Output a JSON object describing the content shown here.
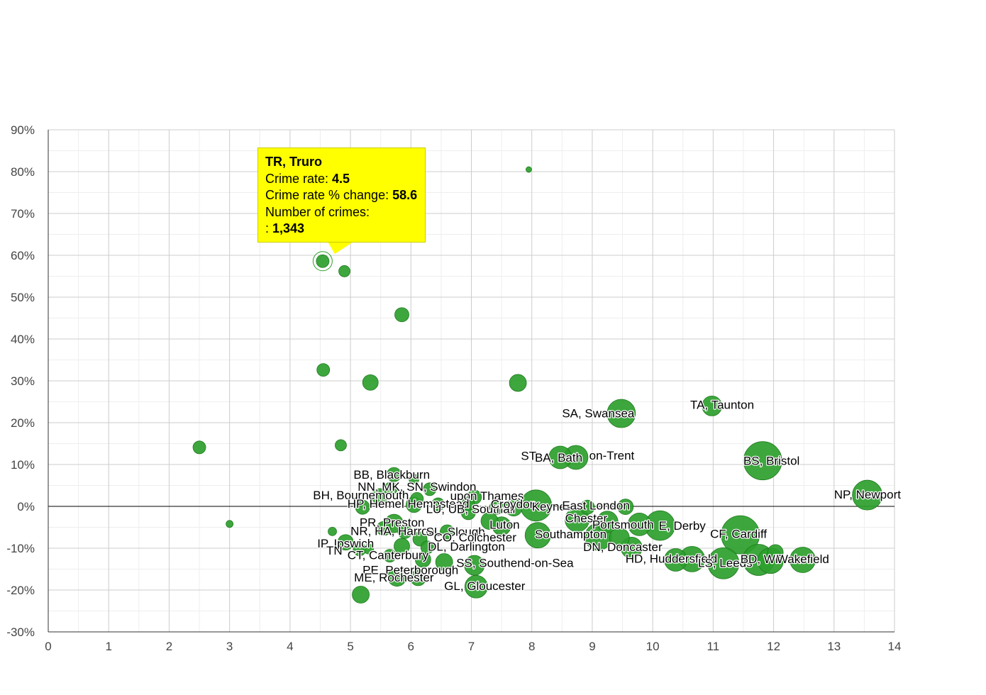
{
  "colors": {
    "bubble": "#2ca02c",
    "bubble_edge": "#1f7a1f",
    "grid_major": "#cccccc",
    "grid_minor": "#eeeeee",
    "zero_line": "#000000",
    "tooltip_bg": "#ffff00"
  },
  "chart_data": {
    "type": "scatter",
    "title": "",
    "xlabel": "Crime rate",
    "ylabel": "Crime rate % change",
    "xlim": [
      0,
      14
    ],
    "ylim": [
      -30,
      90
    ],
    "x_ticks": [
      "0",
      "1",
      "2",
      "3",
      "4",
      "5",
      "6",
      "7",
      "8",
      "9",
      "10",
      "11",
      "12",
      "13",
      "14"
    ],
    "y_ticks": [
      "90%",
      "80%",
      "70%",
      "60%",
      "50%",
      "40%",
      "30%",
      "20%",
      "10%",
      "0%",
      "-10%",
      "-20%",
      "-30%"
    ],
    "grid": true,
    "points": [
      {
        "x": 4.54,
        "y": 58.6,
        "r": 9,
        "label": ""
      },
      {
        "x": 4.9,
        "y": 56.2,
        "r": 8,
        "label": ""
      },
      {
        "x": 7.95,
        "y": 80.5,
        "r": 4,
        "label": ""
      },
      {
        "x": 5.85,
        "y": 45.8,
        "r": 10,
        "label": ""
      },
      {
        "x": 4.55,
        "y": 32.6,
        "r": 9,
        "label": ""
      },
      {
        "x": 5.33,
        "y": 29.6,
        "r": 11,
        "label": ""
      },
      {
        "x": 7.77,
        "y": 29.5,
        "r": 12,
        "label": ""
      },
      {
        "x": 2.5,
        "y": 14.1,
        "r": 9,
        "label": ""
      },
      {
        "x": 4.84,
        "y": 14.6,
        "r": 8,
        "label": ""
      },
      {
        "x": 3.0,
        "y": -4.2,
        "r": 5,
        "label": ""
      },
      {
        "x": 4.7,
        "y": -6.0,
        "r": 6,
        "label": ""
      },
      {
        "x": 9.48,
        "y": 22.2,
        "r": 20,
        "label": "SA, Swansea"
      },
      {
        "x": 10.98,
        "y": 24.0,
        "r": 14,
        "label": "TA, Taunton"
      },
      {
        "x": 8.47,
        "y": 11.7,
        "r": 16,
        "label": "ST"
      },
      {
        "x": 8.73,
        "y": 11.7,
        "r": 17,
        "label": "BA, Bath"
      },
      {
        "x": 11.82,
        "y": 10.9,
        "r": 27,
        "label": "BS, Bristol"
      },
      {
        "x": 13.55,
        "y": 2.7,
        "r": 21,
        "label": "NP, Newport"
      },
      {
        "x": 5.72,
        "y": 7.6,
        "r": 10,
        "label": "BB, Blackburn"
      },
      {
        "x": 6.05,
        "y": 6.5,
        "r": 7,
        "label": ""
      },
      {
        "x": 5.67,
        "y": 4.3,
        "r": 9,
        "label": "NN"
      },
      {
        "x": 6.31,
        "y": 4.1,
        "r": 9,
        "label": "SN, Swindon"
      },
      {
        "x": 5.48,
        "y": 2.4,
        "r": 11,
        "label": "BH, Bournemouth"
      },
      {
        "x": 6.1,
        "y": 1.8,
        "r": 9,
        "label": ""
      },
      {
        "x": 7.05,
        "y": 2.2,
        "r": 10,
        "label": "Thames"
      },
      {
        "x": 5.2,
        "y": -0.2,
        "r": 10,
        "label": "HP, Hemel"
      },
      {
        "x": 6.05,
        "y": 0.4,
        "r": 11,
        "label": ""
      },
      {
        "x": 6.45,
        "y": 0.5,
        "r": 9,
        "label": ""
      },
      {
        "x": 6.95,
        "y": 0.6,
        "r": 9,
        "label": ""
      },
      {
        "x": 7.42,
        "y": -0.2,
        "r": 10,
        "label": ""
      },
      {
        "x": 7.7,
        "y": -0.3,
        "r": 12,
        "label": "Croydon"
      },
      {
        "x": 8.07,
        "y": 0.2,
        "r": 22,
        "label": "Keynes"
      },
      {
        "x": 8.92,
        "y": -0.2,
        "r": 10,
        "label": "East London"
      },
      {
        "x": 9.55,
        "y": -0.1,
        "r": 11,
        "label": ""
      },
      {
        "x": 6.95,
        "y": -1.5,
        "r": 10,
        "label": "LU, Southall"
      },
      {
        "x": 7.3,
        "y": -3.5,
        "r": 12,
        "label": ""
      },
      {
        "x": 8.75,
        "y": -3.2,
        "r": 17,
        "label": "Chester"
      },
      {
        "x": 9.25,
        "y": -3.7,
        "r": 15,
        "label": ""
      },
      {
        "x": 9.78,
        "y": -4.3,
        "r": 16,
        "label": "Portsmouth"
      },
      {
        "x": 10.12,
        "y": -4.6,
        "r": 21,
        "label": "DE, Derby"
      },
      {
        "x": 5.72,
        "y": -4.1,
        "r": 13,
        "label": "PR, Preston"
      },
      {
        "x": 5.55,
        "y": -5.3,
        "r": 10,
        "label": "NR"
      },
      {
        "x": 5.9,
        "y": -6.0,
        "r": 10,
        "label": "HA, Harrow"
      },
      {
        "x": 6.6,
        "y": -6.1,
        "r": 10,
        "label": "SL, Slough"
      },
      {
        "x": 7.5,
        "y": -4.7,
        "r": 13,
        "label": "Luton"
      },
      {
        "x": 8.1,
        "y": -6.9,
        "r": 18,
        "label": "Southampton"
      },
      {
        "x": 9.1,
        "y": -7.3,
        "r": 19,
        "label": ""
      },
      {
        "x": 9.45,
        "y": -7.5,
        "r": 14,
        "label": ""
      },
      {
        "x": 6.15,
        "y": -7.8,
        "r": 10,
        "label": "CO, Colchester"
      },
      {
        "x": 9.65,
        "y": -9.9,
        "r": 15,
        "label": "DN, Doncaster"
      },
      {
        "x": 11.45,
        "y": -6.8,
        "r": 27,
        "label": "CF, Cardiff"
      },
      {
        "x": 4.92,
        "y": -8.6,
        "r": 11,
        "label": "IP, Ipswich"
      },
      {
        "x": 5.15,
        "y": -10.3,
        "r": 9,
        "label": ""
      },
      {
        "x": 5.3,
        "y": -10.2,
        "r": 7,
        "label": "TN"
      },
      {
        "x": 5.85,
        "y": -9.5,
        "r": 11,
        "label": ""
      },
      {
        "x": 6.27,
        "y": -9.8,
        "r": 9,
        "label": "DL, Darlington"
      },
      {
        "x": 5.65,
        "y": -11.8,
        "r": 9,
        "label": "CT, Canterbury"
      },
      {
        "x": 6.2,
        "y": -12.7,
        "r": 11,
        "label": ""
      },
      {
        "x": 6.55,
        "y": -13.3,
        "r": 12,
        "label": ""
      },
      {
        "x": 7.05,
        "y": -14.1,
        "r": 14,
        "label": "SS, Southend-on-Sea"
      },
      {
        "x": 5.77,
        "y": -16.9,
        "r": 13,
        "label": "PE, Peterborough"
      },
      {
        "x": 6.12,
        "y": -17.1,
        "r": 11,
        "label": "ME, Rochester"
      },
      {
        "x": 7.08,
        "y": -19.2,
        "r": 16,
        "label": "GL, Gloucester"
      },
      {
        "x": 5.17,
        "y": -21.1,
        "r": 12,
        "label": ""
      },
      {
        "x": 10.38,
        "y": -12.8,
        "r": 16,
        "label": "HD, Huddersfield"
      },
      {
        "x": 10.65,
        "y": -12.6,
        "r": 18,
        "label": ""
      },
      {
        "x": 11.17,
        "y": -13.6,
        "r": 22,
        "label": "LS, Leeds"
      },
      {
        "x": 11.75,
        "y": -12.8,
        "r": 22,
        "label": "BD"
      },
      {
        "x": 11.95,
        "y": -13.0,
        "r": 18,
        "label": ""
      },
      {
        "x": 12.03,
        "y": -11.0,
        "r": 11,
        "label": "WF"
      },
      {
        "x": 12.48,
        "y": -12.8,
        "r": 18,
        "label": "WF, Wakefield"
      }
    ],
    "annotations": [
      {
        "x": 4.54,
        "y": 58.6,
        "text": "highlighted"
      }
    ]
  },
  "tooltip": {
    "title": "TR, Truro",
    "rate_label": "Crime rate: ",
    "rate_value": "4.5",
    "change_label": "Crime rate % change: ",
    "change_value": "58.6",
    "count_label": "Number of crimes:",
    "count_prefix": ": ",
    "count_value": "1,343"
  },
  "labels": [
    {
      "text": "SA, Swansea",
      "x": 8.5,
      "y": 21.3
    },
    {
      "text": "TA, Taunton",
      "x": 10.62,
      "y": 23.3
    },
    {
      "text": "ST",
      "x": 7.82,
      "y": 11.1
    },
    {
      "text": "BA, Bath",
      "x": 8.05,
      "y": 10.7
    },
    {
      "text": "on-Trent",
      "x": 8.95,
      "y": 11.2
    },
    {
      "text": "BS, Bristol",
      "x": 11.5,
      "y": 9.9
    },
    {
      "text": "NP, Newport",
      "x": 13.0,
      "y": 1.9
    },
    {
      "text": "BB, Blackburn",
      "x": 5.05,
      "y": 6.6
    },
    {
      "text": "NN, MK, SN, Swindon",
      "x": 5.12,
      "y": 3.7
    },
    {
      "text": "BH, Bournemouth",
      "x": 4.38,
      "y": 1.7
    },
    {
      "text": "upon Thames",
      "x": 6.65,
      "y": 1.5
    },
    {
      "text": "HP, Hemel Hempstead",
      "x": 4.95,
      "y": -0.3
    },
    {
      "text": "LU, UB, Southall",
      "x": 6.25,
      "y": -1.6
    },
    {
      "text": "Croydon",
      "x": 7.32,
      "y": -0.4
    },
    {
      "text": "Keynes",
      "x": 8.0,
      "y": -1.0
    },
    {
      "text": "East London",
      "x": 8.5,
      "y": -0.8
    },
    {
      "text": "Chester",
      "x": 8.55,
      "y": -3.8
    },
    {
      "text": "Portsmouth",
      "x": 9.0,
      "y": -5.3
    },
    {
      "text": "E, Derby",
      "x": 10.1,
      "y": -5.6
    },
    {
      "text": "PR, Preston",
      "x": 5.15,
      "y": -4.8
    },
    {
      "text": "NR, HA, Harrow",
      "x": 5.0,
      "y": -6.9
    },
    {
      "text": "SL, Slough",
      "x": 6.25,
      "y": -7.0
    },
    {
      "text": "Luton",
      "x": 7.3,
      "y": -5.3
    },
    {
      "text": "Southampton",
      "x": 8.05,
      "y": -7.6
    },
    {
      "text": "CO, Colchester",
      "x": 6.38,
      "y": -8.4
    },
    {
      "text": "DN, Doncaster",
      "x": 8.85,
      "y": -10.7
    },
    {
      "text": "CF, Cardiff",
      "x": 10.95,
      "y": -7.5
    },
    {
      "text": "IP, Ipswich",
      "x": 4.45,
      "y": -9.8
    },
    {
      "text": "TN",
      "x": 4.6,
      "y": -11.5
    },
    {
      "text": "DL, Darlington",
      "x": 6.28,
      "y": -10.6
    },
    {
      "text": "CT, Canterbury",
      "x": 4.95,
      "y": -12.6
    },
    {
      "text": "SS, Southend-on-Sea",
      "x": 6.75,
      "y": -14.5
    },
    {
      "text": "PE, Peterborough",
      "x": 5.2,
      "y": -16.2
    },
    {
      "text": "ME, Rochester",
      "x": 5.06,
      "y": -18.0
    },
    {
      "text": "GL, Gloucester",
      "x": 6.55,
      "y": -20.0
    },
    {
      "text": "HD, Huddersfield",
      "x": 9.55,
      "y": -13.5
    },
    {
      "text": "LS, Leeds",
      "x": 10.75,
      "y": -14.5
    },
    {
      "text": "BD, WF",
      "x": 11.45,
      "y": -13.6
    },
    {
      "text": "Wakefield",
      "x": 12.05,
      "y": -13.6
    }
  ]
}
